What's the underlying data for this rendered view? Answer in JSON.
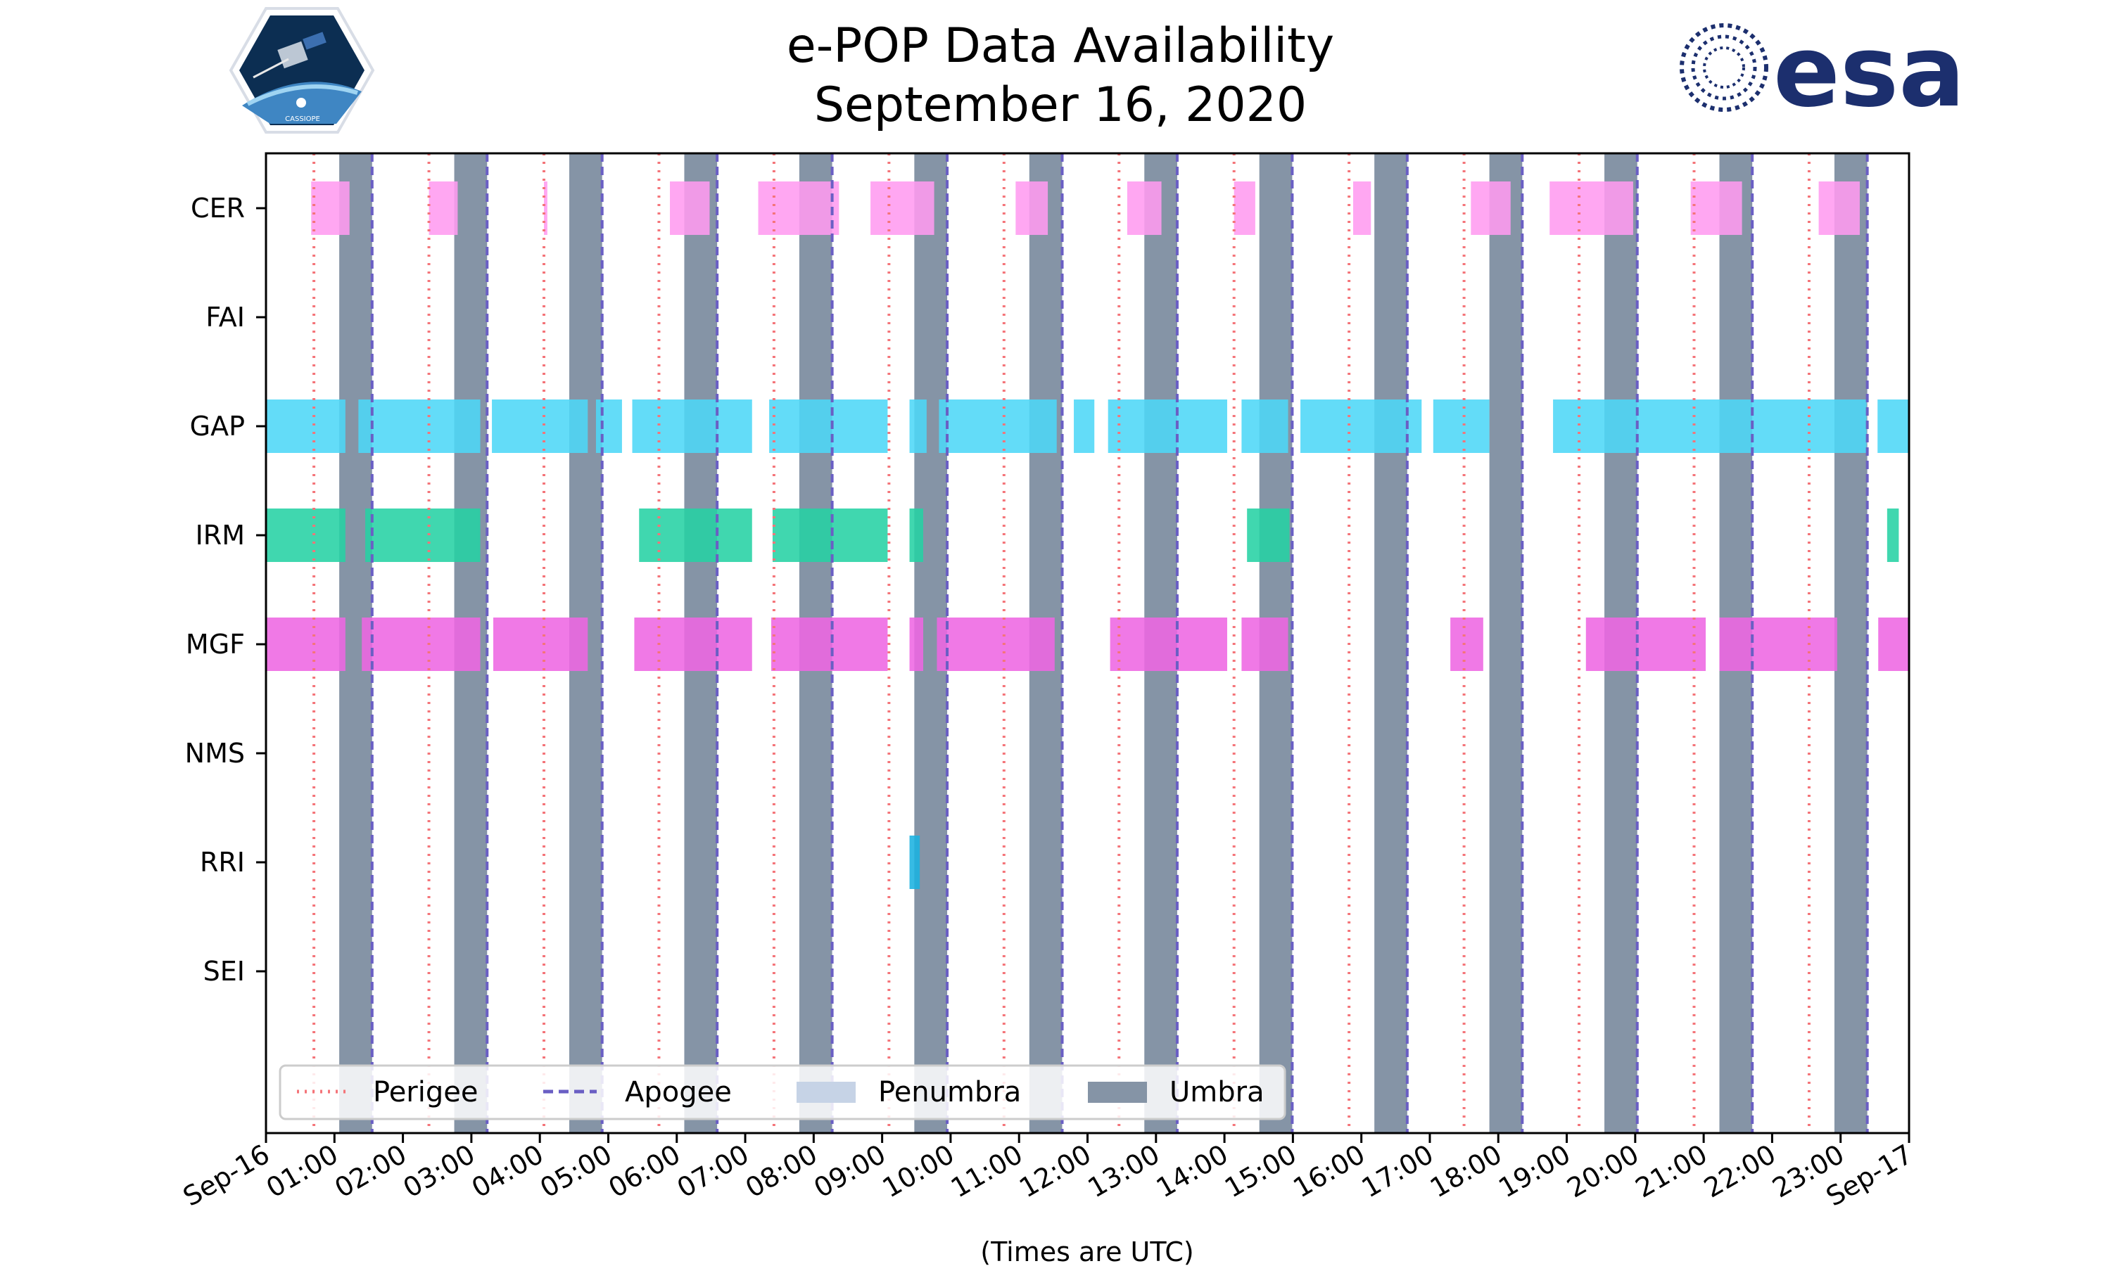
{
  "title_line1": "e-POP Data Availability",
  "title_line2": "September 16, 2020",
  "logos": {
    "left": {
      "name": "CASSIOPE",
      "text": "CASSIOPE"
    },
    "right": {
      "name": "esa",
      "text": "esa",
      "color": "#1c2f6e"
    }
  },
  "chart_data": {
    "type": "timeline",
    "title": "e-POP Data Availability September 16, 2020",
    "xlabel": "(Times are UTC)",
    "xlim": [
      0,
      24
    ],
    "x_tick_labels": [
      "Sep-16",
      "01:00",
      "02:00",
      "03:00",
      "04:00",
      "05:00",
      "06:00",
      "07:00",
      "08:00",
      "09:00",
      "10:00",
      "11:00",
      "12:00",
      "13:00",
      "14:00",
      "15:00",
      "16:00",
      "17:00",
      "18:00",
      "19:00",
      "20:00",
      "21:00",
      "22:00",
      "23:00",
      "Sep-17"
    ],
    "instruments": [
      "CER",
      "FAI",
      "GAP",
      "IRM",
      "MGF",
      "NMS",
      "RRI",
      "SEI"
    ],
    "perigee": [
      0.7,
      2.38,
      4.06,
      5.74,
      7.42,
      9.1,
      10.78,
      12.46,
      14.14,
      15.82,
      17.5,
      19.18,
      20.86,
      22.54
    ],
    "apogee": [
      1.55,
      3.23,
      4.91,
      6.59,
      8.27,
      9.95,
      11.63,
      13.31,
      14.99,
      16.67,
      18.35,
      20.03,
      21.71,
      23.39
    ],
    "umbra": [
      [
        1.07,
        1.55
      ],
      [
        2.75,
        3.23
      ],
      [
        4.43,
        4.91
      ],
      [
        6.11,
        6.59
      ],
      [
        7.79,
        8.27
      ],
      [
        9.47,
        9.95
      ],
      [
        11.15,
        11.63
      ],
      [
        12.83,
        13.31
      ],
      [
        14.51,
        14.99
      ],
      [
        16.19,
        16.67
      ],
      [
        17.87,
        18.35
      ],
      [
        19.55,
        20.03
      ],
      [
        21.23,
        21.71
      ],
      [
        22.91,
        23.39
      ]
    ],
    "penumbra": [],
    "availability": {
      "CER": [
        [
          0.66,
          1.22
        ],
        [
          2.38,
          2.8
        ],
        [
          4.06,
          4.11
        ],
        [
          5.9,
          6.48
        ],
        [
          7.19,
          8.37
        ],
        [
          8.83,
          9.76
        ],
        [
          10.95,
          11.42
        ],
        [
          12.58,
          13.08
        ],
        [
          14.14,
          14.45
        ],
        [
          15.88,
          16.14
        ],
        [
          17.6,
          18.18
        ],
        [
          18.75,
          19.97
        ],
        [
          20.81,
          21.56
        ],
        [
          22.68,
          23.28
        ]
      ],
      "FAI": [],
      "GAP": [
        [
          0,
          1.16
        ],
        [
          1.35,
          3.13
        ],
        [
          3.3,
          4.7
        ],
        [
          4.82,
          5.2
        ],
        [
          5.35,
          7.1
        ],
        [
          7.35,
          9.08
        ],
        [
          9.4,
          9.65
        ],
        [
          9.83,
          11.55
        ],
        [
          11.8,
          12.1
        ],
        [
          12.3,
          14.04
        ],
        [
          14.25,
          14.93
        ],
        [
          15.11,
          16.88
        ],
        [
          17.05,
          17.87
        ],
        [
          18.8,
          23.38
        ],
        [
          23.54,
          24
        ]
      ],
      "IRM": [
        [
          0,
          1.16
        ],
        [
          1.45,
          3.13
        ],
        [
          5.45,
          7.1
        ],
        [
          7.4,
          9.08
        ],
        [
          9.4,
          9.6
        ],
        [
          14.33,
          14.95
        ],
        [
          23.68,
          23.85
        ]
      ],
      "MGF": [
        [
          0,
          1.16
        ],
        [
          1.4,
          3.13
        ],
        [
          3.32,
          4.7
        ],
        [
          5.38,
          7.1
        ],
        [
          7.38,
          9.08
        ],
        [
          9.4,
          9.6
        ],
        [
          9.8,
          11.52
        ],
        [
          12.33,
          14.04
        ],
        [
          14.25,
          14.93
        ],
        [
          17.3,
          17.78
        ],
        [
          19.28,
          21.03
        ],
        [
          21.23,
          22.95
        ],
        [
          23.55,
          24
        ]
      ],
      "NMS": [],
      "RRI": [
        [
          9.4,
          9.55
        ]
      ],
      "SEI": []
    },
    "colors": {
      "CER": "#ff9bf0",
      "FAI": "#cccccc",
      "GAP": "#4dd7f7",
      "IRM": "#26d1a4",
      "MGF": "#ee66e2",
      "NMS": "#999999",
      "RRI": "#1ab2e0",
      "SEI": "#999999",
      "perigee": "#f47479",
      "apogee": "#6a5fc4",
      "penumbra": "#c6d3e6",
      "umbra": "#8594a6"
    },
    "legend": {
      "position": "lower-left",
      "items": [
        {
          "label": "Perigee",
          "style": "dotted",
          "color": "#f47479"
        },
        {
          "label": "Apogee",
          "style": "dashed",
          "color": "#6a5fc4"
        },
        {
          "label": "Penumbra",
          "style": "patch",
          "color": "#c6d3e6"
        },
        {
          "label": "Umbra",
          "style": "patch",
          "color": "#8594a6"
        }
      ]
    }
  }
}
